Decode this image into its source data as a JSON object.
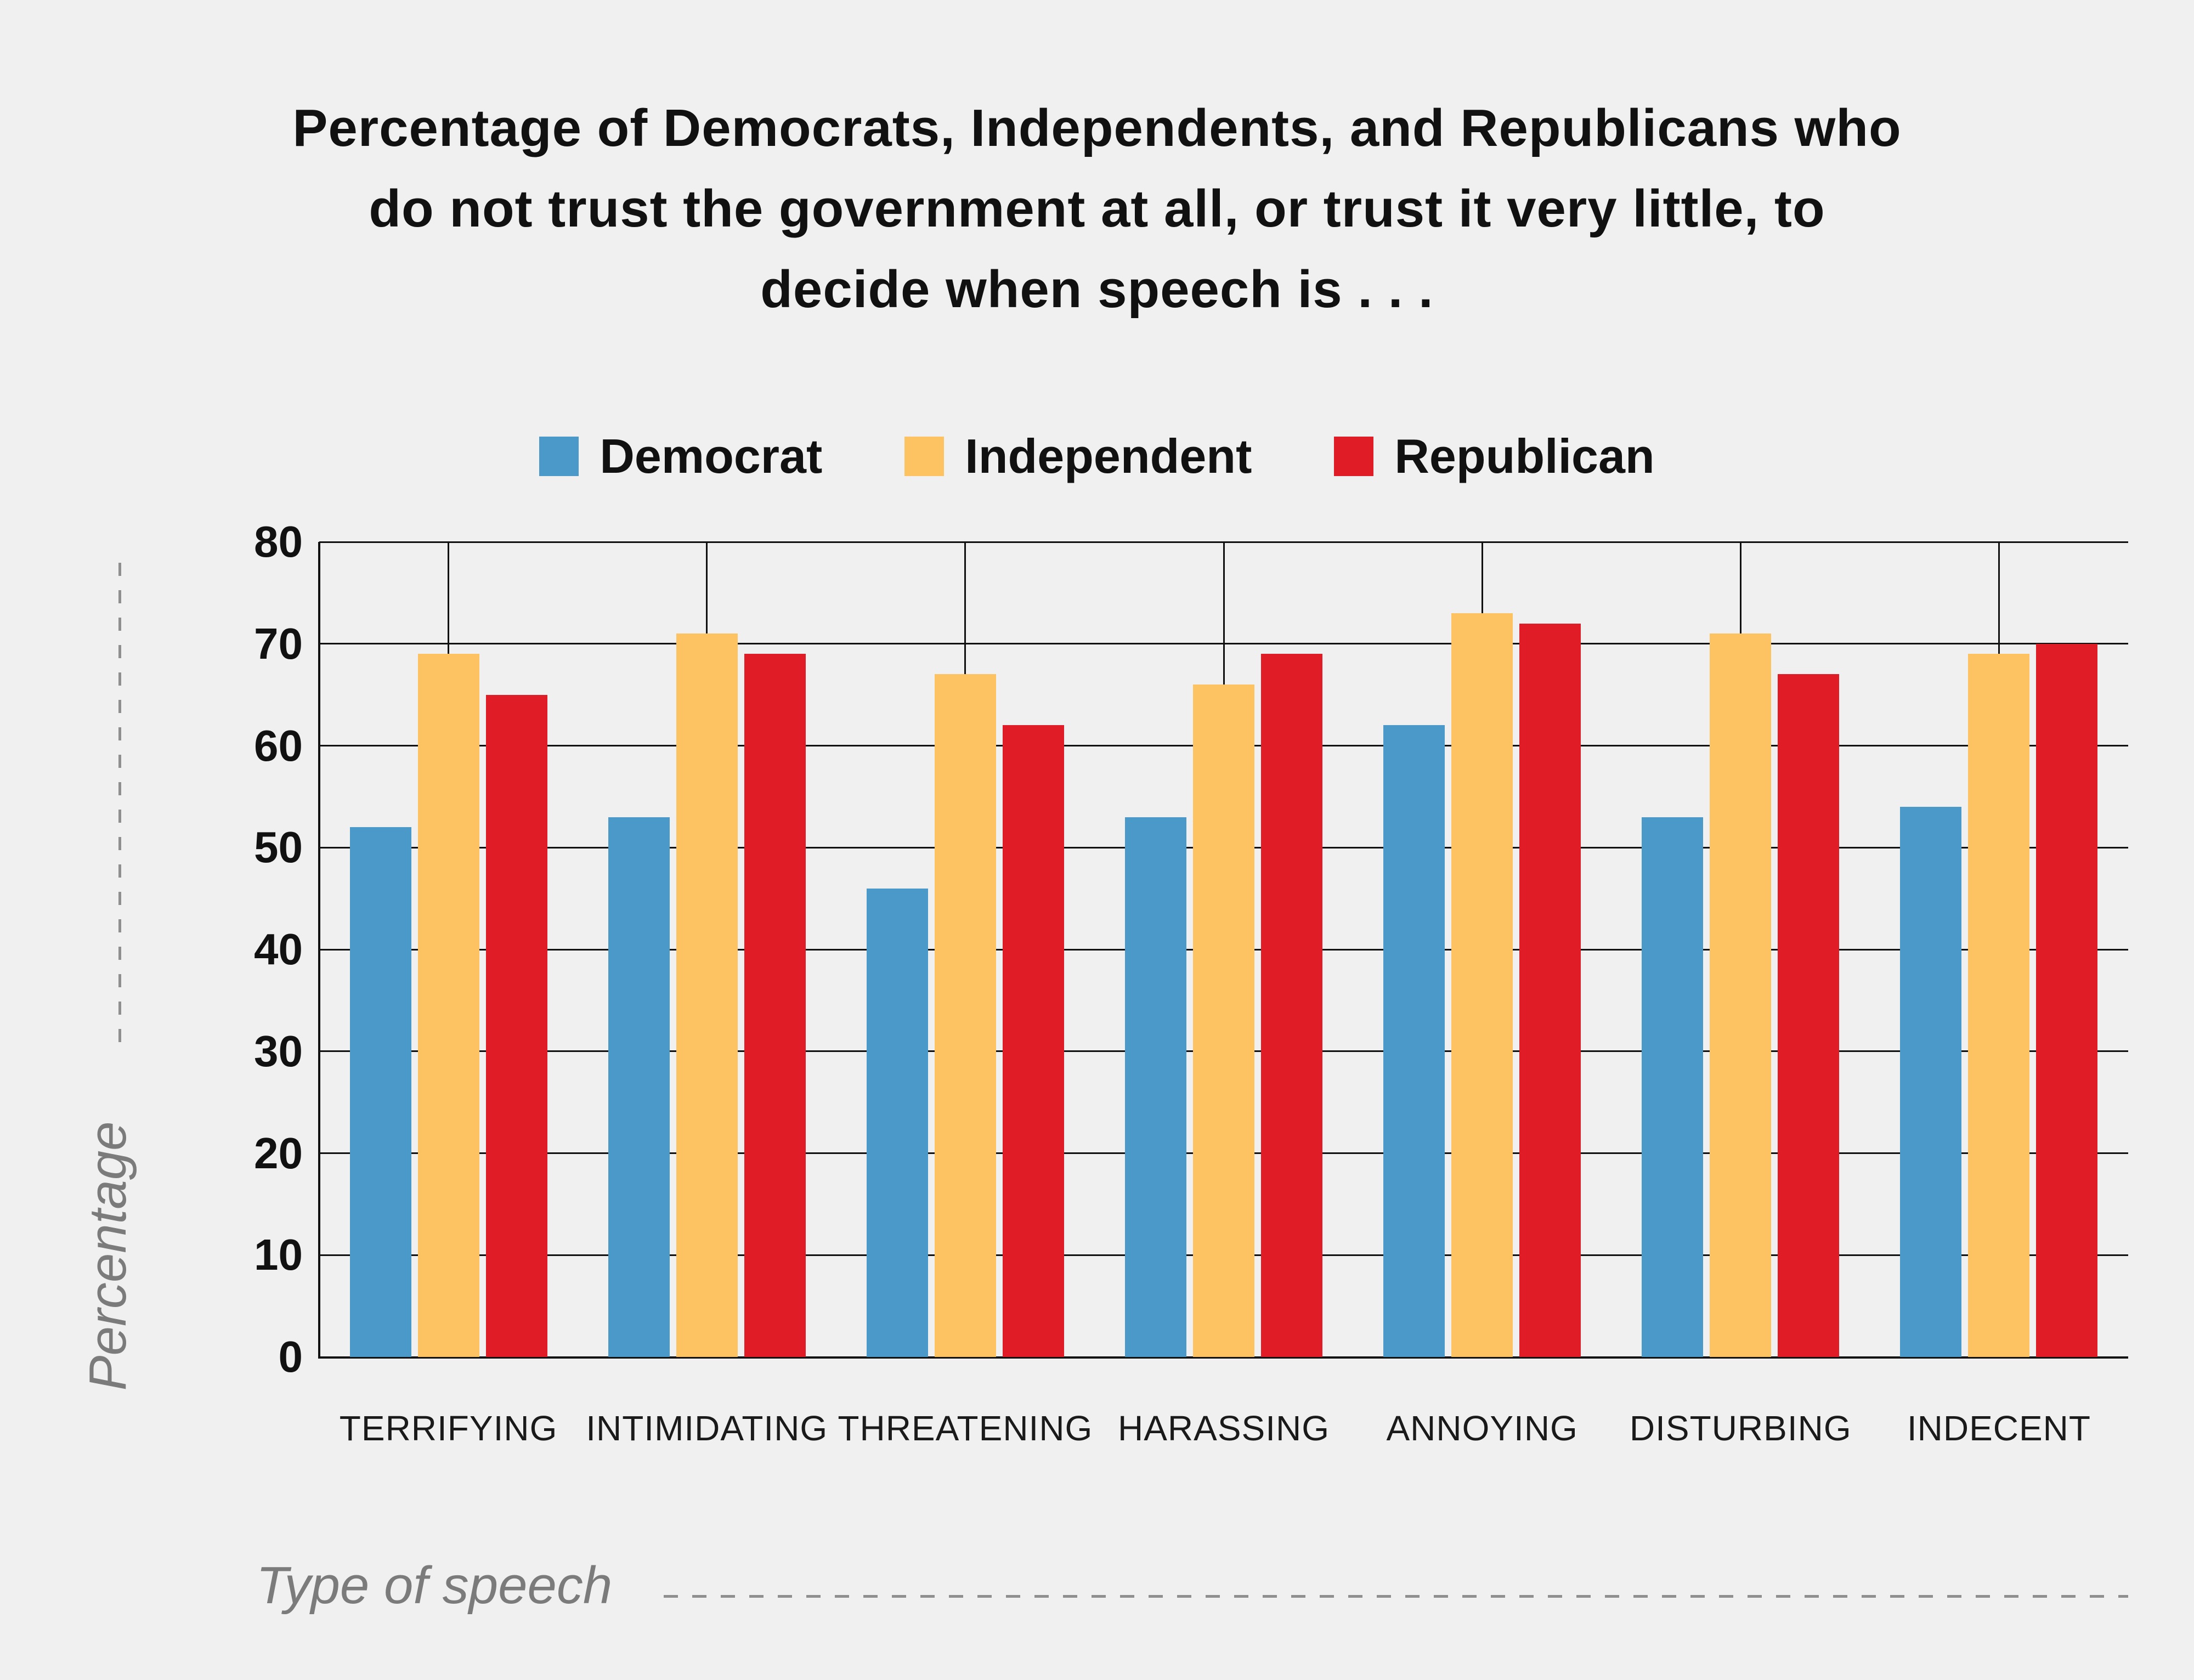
{
  "page": {
    "background": "#f0f0f0"
  },
  "header": {
    "title_lines": [
      "Percentage of Democrats, Independents, and Republicans who",
      "do not trust the government at all, or trust it very little, to",
      "decide when speech is . . ."
    ]
  },
  "legend": {
    "items": [
      {
        "label": "Democrat",
        "color": "#4A99C9"
      },
      {
        "label": "Independent",
        "color": "#FDC363"
      },
      {
        "label": "Republican",
        "color": "#E01D26"
      }
    ]
  },
  "axes": {
    "y_title": "Percentage",
    "x_title": "Type of speech"
  },
  "chart_data": {
    "type": "bar",
    "title": "Percentage of Democrats, Independents, and Republicans who do not trust the government at all, or trust it very little, to decide when speech is . . .",
    "categories": [
      "TERRIFYING",
      "INTIMIDATING",
      "THREATENING",
      "HARASSING",
      "ANNOYING",
      "DISTURBING",
      "INDECENT"
    ],
    "series": [
      {
        "name": "Democrat",
        "color": "#4A99C9",
        "values": [
          52,
          53,
          46,
          53,
          62,
          53,
          54
        ]
      },
      {
        "name": "Independent",
        "color": "#FDC363",
        "values": [
          69,
          71,
          67,
          66,
          73,
          71,
          69
        ]
      },
      {
        "name": "Republican",
        "color": "#E01D26",
        "values": [
          65,
          69,
          62,
          69,
          72,
          67,
          70
        ]
      }
    ],
    "xlabel": "Type of speech",
    "ylabel": "Percentage",
    "ylim": [
      0,
      80
    ],
    "yticks": [
      0,
      10,
      20,
      30,
      40,
      50,
      60,
      70,
      80
    ],
    "grid": true,
    "legend_position": "top",
    "colors": {
      "background": "#f0f0f0",
      "gridline": "#111111",
      "text": "#111111",
      "axis_title": "#7b7b7b"
    }
  }
}
